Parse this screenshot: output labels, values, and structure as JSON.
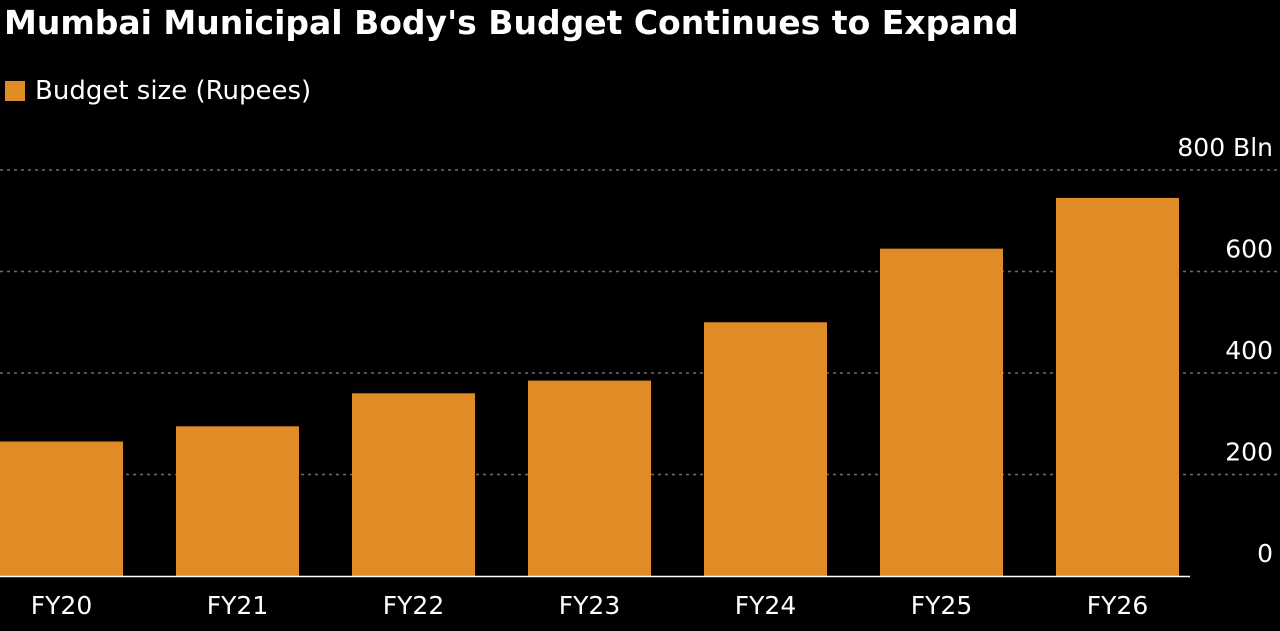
{
  "chart_data": {
    "type": "bar",
    "title": "Mumbai Municipal Body's Budget Continues to Expand",
    "legend": {
      "placement": "top-left",
      "entries": [
        {
          "name": "Budget size (Rupees)",
          "color": "#DF8B26"
        }
      ]
    },
    "categories": [
      "FY20",
      "FY21",
      "FY22",
      "FY23",
      "FY24",
      "FY25",
      "FY26"
    ],
    "series": [
      {
        "name": "Budget size (Rupees)",
        "color": "#DF8B26",
        "values": [
          265,
          295,
          360,
          385,
          500,
          645,
          745
        ]
      }
    ],
    "y_axis": {
      "position": "right",
      "ylim": [
        0,
        800
      ],
      "ticks": [
        0,
        200,
        400,
        600,
        800
      ],
      "tick_labels": [
        "0",
        "200",
        "400",
        "600",
        "800 Bln"
      ]
    },
    "grid": {
      "horizontal": true,
      "style": "dotted",
      "color": "#6E6E6E"
    },
    "baseline_color": "#FFFFFF",
    "background": "#000000"
  }
}
